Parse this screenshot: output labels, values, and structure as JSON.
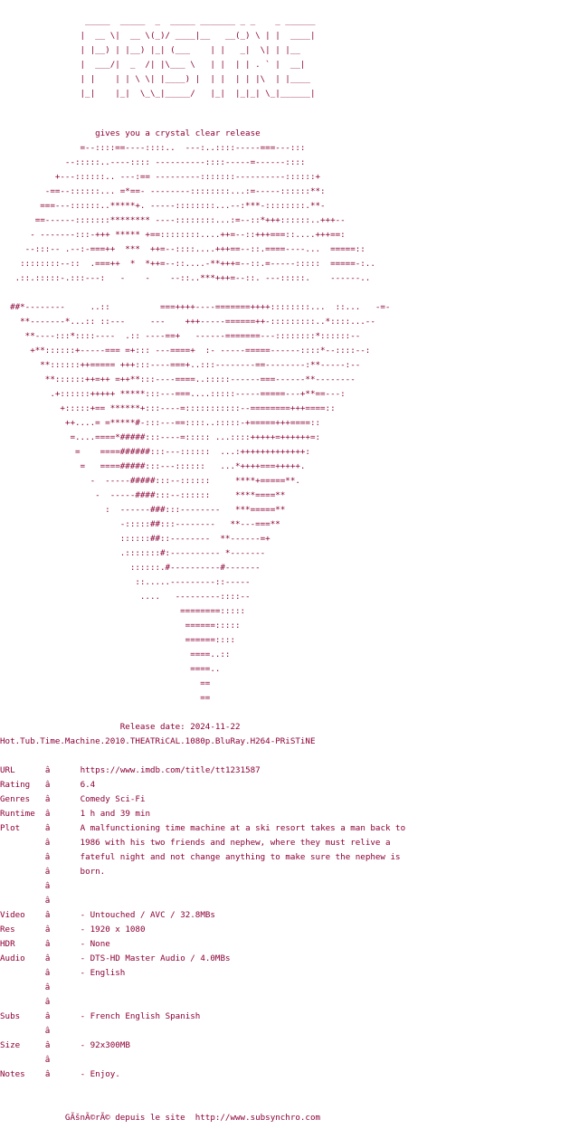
{
  "banner": "\n                 _____  _____  _  _____ _______ _ _    _ ______\n                |  __ \\|  __ \\(_)/ ____|__   __(_) \\ | |  ____|\n                | |__) | |__) |_| (___    | |   _|  \\| | |__\n                |  ___/|  _  /| |\\___ \\   | |  | | . ` |  __|\n                | |    | | \\ \\| |____) |  | |  | | |\\  | |____\n                |_|    |_|  \\_\\_|_____/   |_|  |_|_| \\_|______|",
  "tagline": "                   gives you a crystal clear release",
  "ascii_art": "                =--::::==----::::..  ---:..::::-----===---:::\n             --:::::..----:::: ----------::::-----=------::::\n           +---::::::.. ---:== ---------:::::::----------::::::+\n         -==--::::::... =*==- --------::::::::...:=-----::::::**:\n        ===---::::::..*****+. -----::::::::...--:***-::::::::.**-\n       ==------:::::::******** ----::::::::...:=--::*+++::::::..+++--\n      - -------:::-+++ ***** +==::::::::....++=--::+++===::....+++==:\n     --:::-- .--:-===++  ***  ++=--::::....+++==--::.====----...  =====::\n    ::::::::--::  .===++  *  *++=--::....-**+++=--::.=-----:::::  =====-:..\n   .::.:::::-.:::---:   -    -    --::..***+++=--::. ---:::::.    ------..\n\n  ##*--------     ..::          ===++++----=======++++::::::::...  ::...   -=-\n    **-------*...:: ::---     ---    +++-----======++-:::::::::..*::::...--\n     **----:::*::::----  .:: ----==+   ------=======---::::::::*::::::--\n      +**::::::+-----=== =+::: ---====+  :- -----=====------::::*--::::--:\n        **::::::++===== +++:::----===+..:::--------==--------:**-----:--\n         **::::::++=++ =++**:::----====..:::::------===------**--------\n          .+::::::+++++ *****:::---===....:::::-----=====---+**==---:\n            +:::::+== ******+:::----=:::::::::::--========+++====::\n             ++....= =*****#-:::---==::::..:::::-+=====+++====::\n              =....====*#####:::----=::::: ...::::+++++=++++++=:\n               =    ====######:::---::::::  ...:+++++++++++++:\n                =   ====#####:::---::::::   ...*++++===+++++.\n                  -  -----#####:::--::::::     ****+=====**.\n                   -  -----####:::--::::::     ****====**\n                     :  ------###:::--------   ***=====**\n                        -:::::##:::--------   **---===**\n                        ::::::##::--------  **------=+\n                        .:::::::#:---------- *-------\n                          ::::::.#----------#-------\n                           ::.....---------::-----\n                            ....   ---------::::--\n                                    ========:::::\n                                     ======:::::\n                                     ======::::\n                                      ====..::\n                                      ====..\n                                        ==\n                                        ==",
  "release_block": "                        Release date: 2024-11-22\nHot.Tub.Time.Machine.2010.THEATRiCAL.1080p.BluRay.H264-PRiSTiNE",
  "info_rows": [
    {
      "key": "URL",
      "sep": "â",
      "value": "https://www.imdb.com/title/tt1231587"
    },
    {
      "key": "Rating",
      "sep": "â",
      "value": "6.4"
    },
    {
      "key": "Genres",
      "sep": "â",
      "value": "Comedy Sci-Fi"
    },
    {
      "key": "Runtime",
      "sep": "â",
      "value": "1 h and 39 min"
    },
    {
      "key": "Plot",
      "sep": "â",
      "value": "A malfunctioning time machine at a ski resort takes a man back to"
    },
    {
      "key": "",
      "sep": "â",
      "value": "1986 with his two friends and nephew, where they must relive a"
    },
    {
      "key": "",
      "sep": "â",
      "value": "fateful night and not change anything to make sure the nephew is"
    },
    {
      "key": "",
      "sep": "â",
      "value": "born."
    },
    {
      "key": "",
      "sep": "â",
      "value": ""
    },
    {
      "key": "",
      "sep": "â",
      "value": ""
    },
    {
      "key": "Video",
      "sep": "â",
      "value": "- Untouched / AVC / 32.8MBs"
    },
    {
      "key": "Res",
      "sep": "â",
      "value": "- 1920 x 1080"
    },
    {
      "key": "HDR",
      "sep": "â",
      "value": "- None"
    },
    {
      "key": "Audio",
      "sep": "â",
      "value": "- DTS-HD Master Audio / 4.0MBs"
    },
    {
      "key": "",
      "sep": "â",
      "value": "- English"
    },
    {
      "key": "",
      "sep": "â",
      "value": ""
    },
    {
      "key": "",
      "sep": "â",
      "value": ""
    },
    {
      "key": "Subs",
      "sep": "â",
      "value": "- French English Spanish"
    },
    {
      "key": "",
      "sep": "â",
      "value": ""
    },
    {
      "key": "Size",
      "sep": "â",
      "value": "- 92x300MB"
    },
    {
      "key": "",
      "sep": "â",
      "value": ""
    },
    {
      "key": "Notes",
      "sep": "â",
      "value": "- Enjoy."
    }
  ],
  "footer": "             GÃšnÃ©rÃ© depuis le site  http://www.subsynchro.com"
}
